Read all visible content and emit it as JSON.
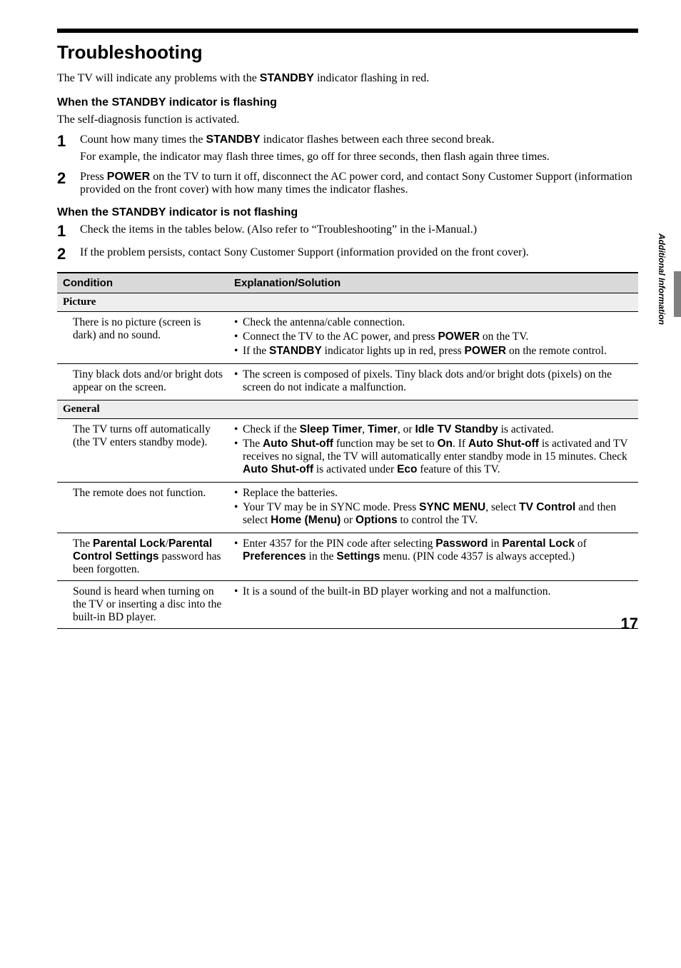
{
  "heading": "Troubleshooting",
  "intro_parts": [
    "The TV will indicate any problems with the ",
    "STANDBY",
    " indicator flashing in red."
  ],
  "sec1_title": "When the STANDBY indicator is flashing",
  "sec1_body": "The self-diagnosis function is activated.",
  "sec1_steps": [
    {
      "num": "1",
      "main": [
        "Count how many times the ",
        "STANDBY",
        " indicator flashes between each three second break."
      ],
      "sub": "For example, the indicator may flash three times, go off for three seconds, then flash again three times."
    },
    {
      "num": "2",
      "main": [
        "Press ",
        "POWER",
        " on the TV to turn it off, disconnect the AC power cord, and contact Sony Customer Support (information provided on the front cover) with how many times the indicator flashes."
      ]
    }
  ],
  "sec2_title": "When the STANDBY indicator is not flashing",
  "sec2_steps": [
    {
      "num": "1",
      "main": [
        "Check the items in the tables below. (Also refer to “Troubleshooting” in the i-Manual.)"
      ]
    },
    {
      "num": "2",
      "main": [
        "If the problem persists, contact Sony Customer Support (information provided on the front cover)."
      ]
    }
  ],
  "table_headers": [
    "Condition",
    "Explanation/Solution"
  ],
  "cat_picture": "Picture",
  "cat_general": "General",
  "rows": {
    "r1_cond": "There is no picture (screen is dark) and no sound.",
    "r1_sol": [
      [
        {
          "t": "Check the antenna/cable connection."
        }
      ],
      [
        {
          "t": "Connect the TV to the AC power, and press "
        },
        {
          "b": "POWER"
        },
        {
          "t": " on the TV."
        }
      ],
      [
        {
          "t": "If the "
        },
        {
          "b": "STANDBY"
        },
        {
          "t": " indicator lights up in red, press "
        },
        {
          "b": "POWER"
        },
        {
          "t": " on the remote control."
        }
      ]
    ],
    "r2_cond": "Tiny black dots and/or bright dots appear on the screen.",
    "r2_sol": [
      [
        {
          "t": "The screen is composed of pixels. Tiny black dots and/or bright dots (pixels) on the screen do not indicate a malfunction."
        }
      ]
    ],
    "r3_cond": "The TV turns off automatically (the TV enters standby mode).",
    "r3_sol": [
      [
        {
          "t": "Check if the "
        },
        {
          "b": "Sleep Timer"
        },
        {
          "t": ", "
        },
        {
          "b": "Timer"
        },
        {
          "t": ", or "
        },
        {
          "b": "Idle TV Standby"
        },
        {
          "t": " is activated."
        }
      ],
      [
        {
          "t": "The "
        },
        {
          "b": "Auto Shut-off"
        },
        {
          "t": " function may be set to "
        },
        {
          "b": "On"
        },
        {
          "t": ". If "
        },
        {
          "b": "Auto Shut-off"
        },
        {
          "t": " is activated and TV receives no signal, the TV will automatically enter standby mode in 15 minutes. Check "
        },
        {
          "b": "Auto Shut-off"
        },
        {
          "t": " is activated under "
        },
        {
          "b": "Eco"
        },
        {
          "t": " feature of this TV."
        }
      ]
    ],
    "r4_cond": "The remote does not function.",
    "r4_sol": [
      [
        {
          "t": "Replace the batteries."
        }
      ],
      [
        {
          "t": "Your TV may be in SYNC mode. Press "
        },
        {
          "b": "SYNC MENU"
        },
        {
          "t": ", select "
        },
        {
          "b": "TV Control"
        },
        {
          "t": " and then select "
        },
        {
          "b": "Home (Menu)"
        },
        {
          "t": " or "
        },
        {
          "b": "Options"
        },
        {
          "t": " to control the TV."
        }
      ]
    ],
    "r5_cond_parts": [
      {
        "t": "The "
      },
      {
        "b": "Parental Lock"
      },
      {
        "t": "/"
      },
      {
        "b": "Parental Control Settings"
      },
      {
        "t": " password has been forgotten."
      }
    ],
    "r5_sol": [
      [
        {
          "t": "Enter 4357 for the PIN code after selecting "
        },
        {
          "b": "Password"
        },
        {
          "t": " in "
        },
        {
          "b": "Parental Lock"
        },
        {
          "t": " of "
        },
        {
          "b": "Preferences"
        },
        {
          "t": " in the "
        },
        {
          "b": "Settings"
        },
        {
          "t": " menu. (PIN code 4357 is always accepted.)"
        }
      ]
    ],
    "r6_cond": "Sound is heard when turning on the TV or inserting a disc into the built-in BD player.",
    "r6_sol": [
      [
        {
          "t": "It is a sound of the built-in BD player working and not a malfunction."
        }
      ]
    ]
  },
  "side_label": "Additional Information",
  "page_number": "17"
}
